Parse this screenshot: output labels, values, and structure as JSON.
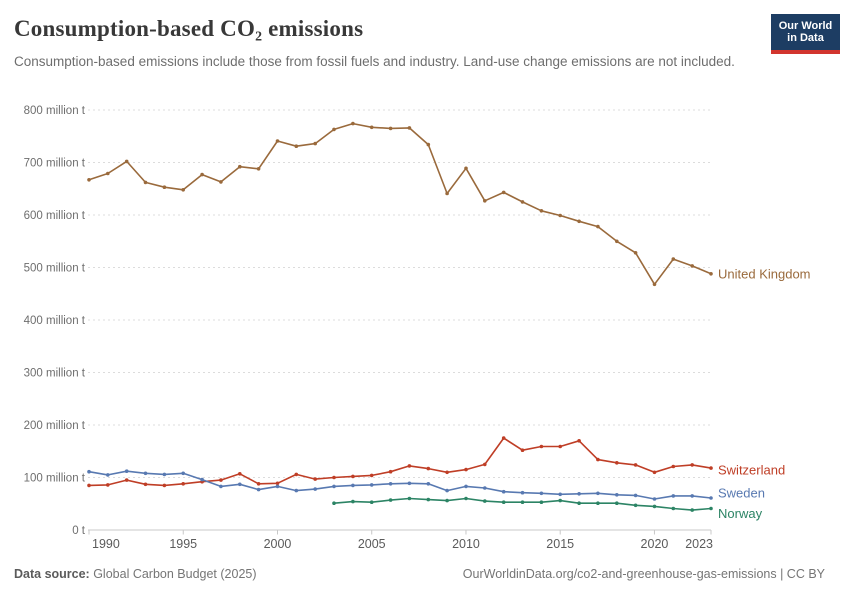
{
  "header": {
    "title": "Consumption-based CO₂ emissions",
    "subtitle": "Consumption-based emissions include those from fossil fuels and industry. Land-use change emissions are not included."
  },
  "logo": {
    "line1": "Our World",
    "line2": "in Data",
    "bg_color": "#1d3d63",
    "accent_color": "#d2352e"
  },
  "chart_data": {
    "type": "line",
    "title": "Consumption-based CO₂ emissions",
    "unit": "million t",
    "ylabel": "",
    "xlabel": "",
    "ylim": [
      0,
      800
    ],
    "x_range": [
      1990,
      2023
    ],
    "grid": "horizontal-dashed",
    "legend_position": "right-end-labels",
    "y_ticks": [
      {
        "value": 800,
        "label": "800 million t"
      },
      {
        "value": 700,
        "label": "700 million t"
      },
      {
        "value": 600,
        "label": "600 million t"
      },
      {
        "value": 500,
        "label": "500 million t"
      },
      {
        "value": 400,
        "label": "400 million t"
      },
      {
        "value": 300,
        "label": "300 million t"
      },
      {
        "value": 200,
        "label": "200 million t"
      },
      {
        "value": 100,
        "label": "100 million t"
      },
      {
        "value": 0,
        "label": "0 t"
      }
    ],
    "x_ticks": [
      1990,
      1995,
      2000,
      2005,
      2010,
      2015,
      2020,
      2023
    ],
    "series": [
      {
        "name": "United Kingdom",
        "color": "#9a6a3c",
        "start_year": 1990,
        "label_dy": 0,
        "values": [
          667,
          679,
          702,
          662,
          653,
          648,
          677,
          663,
          692,
          688,
          741,
          731,
          736,
          763,
          774,
          767,
          765,
          766,
          734,
          641,
          689,
          627,
          643,
          625,
          608,
          599,
          588,
          578,
          550,
          528,
          468,
          516,
          503,
          488
        ]
      },
      {
        "name": "Switzerland",
        "color": "#bf3e26",
        "start_year": 1990,
        "label_dy": 2,
        "values": [
          85,
          86,
          95,
          87,
          85,
          88,
          92,
          95,
          107,
          88,
          89,
          106,
          97,
          100,
          102,
          104,
          111,
          122,
          117,
          110,
          115,
          125,
          175,
          152,
          159,
          159,
          170,
          134,
          128,
          124,
          110,
          121,
          124,
          118
        ]
      },
      {
        "name": "Sweden",
        "color": "#5879b1",
        "start_year": 1990,
        "label_dy": -5,
        "values": [
          111,
          105,
          112,
          108,
          106,
          108,
          96,
          83,
          87,
          77,
          83,
          75,
          78,
          83,
          85,
          86,
          88,
          89,
          88,
          75,
          83,
          80,
          73,
          71,
          70,
          68,
          69,
          70,
          67,
          66,
          59,
          65,
          65,
          61
        ]
      },
      {
        "name": "Norway",
        "color": "#2c8465",
        "start_year": 2003,
        "label_dy": 5,
        "values": [
          51,
          54,
          53,
          57,
          60,
          58,
          56,
          60,
          55,
          53,
          53,
          53,
          56,
          51,
          51,
          51,
          47,
          45,
          41,
          38,
          41
        ]
      }
    ]
  },
  "footer": {
    "source_label": "Data source:",
    "source_value": " Global Carbon Budget (2025)",
    "right_text": "OurWorldinData.org/co2-and-greenhouse-gas-emissions | CC BY"
  },
  "style": {
    "grid_color": "#dcdcdc",
    "axis_color": "#c8c8c8",
    "y_tick_label_color": "#6e6e6e",
    "x_tick_label_color": "#5b5b5b"
  }
}
